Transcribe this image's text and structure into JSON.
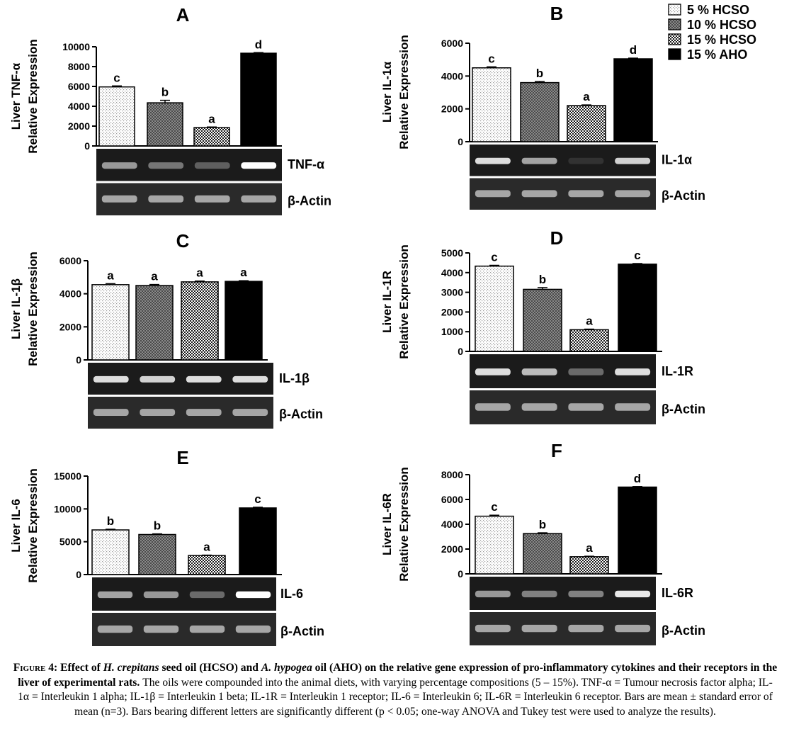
{
  "legend": {
    "entries": [
      {
        "label": "5 % HCSO",
        "pattern": "dots"
      },
      {
        "label": "10 % HCSO",
        "pattern": "dark-check"
      },
      {
        "label": "15 % HCSO",
        "pattern": "check"
      },
      {
        "label": "15 % AHO",
        "pattern": "solid"
      }
    ]
  },
  "chart_data": [
    {
      "type": "bar",
      "panel": "A",
      "ylabel": [
        "Liver TNF-α",
        "Relative Expression"
      ],
      "ylim": [
        0,
        10000
      ],
      "yticks": [
        0,
        2000,
        4000,
        6000,
        8000,
        10000
      ],
      "categories": [
        "5 % HCSO",
        "10 % HCSO",
        "15 % HCSO",
        "15 % AHO"
      ],
      "values": [
        5950,
        4350,
        1850,
        9350
      ],
      "errors": [
        100,
        250,
        60,
        60
      ],
      "letters": [
        "c",
        "b",
        "a",
        "d"
      ],
      "gel_labels": [
        "TNF-α",
        "β-Actin"
      ]
    },
    {
      "type": "bar",
      "panel": "B",
      "ylabel": [
        "Liver IL-1α",
        "Relative Expression"
      ],
      "ylim": [
        0,
        6000
      ],
      "yticks": [
        0,
        2000,
        4000,
        6000
      ],
      "categories": [
        "5 % HCSO",
        "10 % HCSO",
        "15 % HCSO",
        "15 % AHO"
      ],
      "values": [
        4500,
        3600,
        2200,
        5050
      ],
      "errors": [
        60,
        70,
        40,
        40
      ],
      "letters": [
        "c",
        "b",
        "a",
        "d"
      ],
      "gel_labels": [
        "IL-1α",
        "β-Actin"
      ]
    },
    {
      "type": "bar",
      "panel": "C",
      "ylabel": [
        "Liver IL-1β",
        "Relative Expression"
      ],
      "ylim": [
        0,
        6000
      ],
      "yticks": [
        0,
        2000,
        4000,
        6000
      ],
      "categories": [
        "5 % HCSO",
        "10 % HCSO",
        "15 % HCSO",
        "15 % AHO"
      ],
      "values": [
        4550,
        4500,
        4720,
        4750
      ],
      "errors": [
        60,
        60,
        50,
        40
      ],
      "letters": [
        "a",
        "a",
        "a",
        "a"
      ],
      "gel_labels": [
        "IL-1β",
        "β-Actin"
      ]
    },
    {
      "type": "bar",
      "panel": "D",
      "ylabel": [
        "Liver IL-1R",
        "Relative Expression"
      ],
      "ylim": [
        0,
        5000
      ],
      "yticks": [
        0,
        1000,
        2000,
        3000,
        4000,
        5000
      ],
      "categories": [
        "5 % HCSO",
        "10 % HCSO",
        "15 % HCSO",
        "15 % AHO"
      ],
      "values": [
        4330,
        3150,
        1100,
        4430
      ],
      "errors": [
        40,
        90,
        30,
        30
      ],
      "letters": [
        "c",
        "b",
        "a",
        "c"
      ],
      "gel_labels": [
        "IL-1R",
        "β-Actin"
      ]
    },
    {
      "type": "bar",
      "panel": "E",
      "ylabel": [
        "Liver IL-6",
        "Relative Expression"
      ],
      "ylim": [
        0,
        15000
      ],
      "yticks": [
        0,
        5000,
        10000,
        15000
      ],
      "categories": [
        "5 % HCSO",
        "10 % HCSO",
        "15 % HCSO",
        "15 % AHO"
      ],
      "values": [
        6800,
        6100,
        2900,
        10150
      ],
      "errors": [
        100,
        100,
        60,
        100
      ],
      "letters": [
        "b",
        "b",
        "a",
        "c"
      ],
      "gel_labels": [
        "IL-6",
        "β-Actin"
      ]
    },
    {
      "type": "bar",
      "panel": "F",
      "ylabel": [
        "Liver IL-6R",
        "Relative Expression"
      ],
      "ylim": [
        0,
        8000
      ],
      "yticks": [
        0,
        2000,
        4000,
        6000,
        8000
      ],
      "categories": [
        "5 % HCSO",
        "10 % HCSO",
        "15 % HCSO",
        "15 % AHO"
      ],
      "values": [
        4650,
        3250,
        1380,
        7000
      ],
      "errors": [
        80,
        60,
        40,
        40
      ],
      "letters": [
        "c",
        "b",
        "a",
        "d"
      ],
      "gel_labels": [
        "IL-6R",
        "β-Actin"
      ]
    }
  ],
  "caption": {
    "fig_label": "Figure 4:",
    "lead_parts": [
      "Effect of ",
      "H. crepitans",
      " seed oil (HCSO) and ",
      "A. hypogea",
      " oil (AHO) on the relative gene expression of pro-inflammatory cytokines and their receptors in the liver of experimental rats."
    ],
    "body": " The oils were compounded into the animal diets, with varying percentage compositions (5 – 15%). TNF-α = Tumour necrosis factor alpha; IL-1α = Interleukin 1 alpha; IL-1β = Interleukin 1 beta; IL-1R = Interleukin 1 receptor; IL-6 = Interleukin 6; IL-6R = Interleukin 6 receptor. Bars are mean ± standard error of mean (n=3). Bars bearing different letters are significantly different (p < 0.05; one-way ANOVA and Tukey test were used to analyze the results)."
  }
}
